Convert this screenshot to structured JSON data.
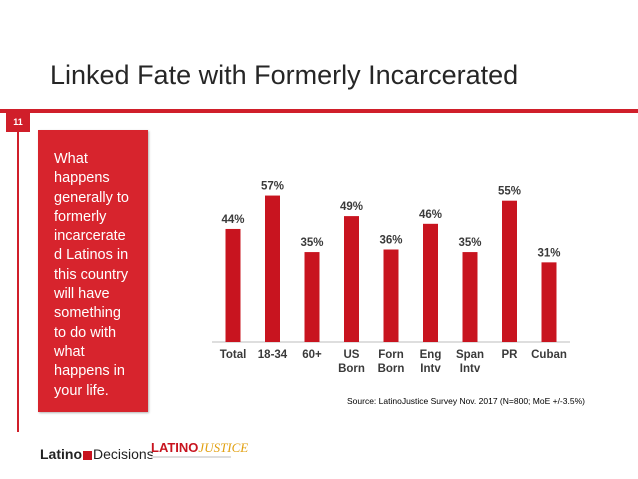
{
  "slide": {
    "title": "Linked Fate with Formerly Incarcerated",
    "number": "11",
    "panel_text": "What\nhappens\ngenerally to\nformerly\nincarcerate\nd Latinos in\nthis country\nwill have\nsomething\nto do with\nwhat\nhappens in\nyour life.",
    "source": "Source: LatinoJustice Survey Nov. 2017 (N=800; MoE +/-3.5%)",
    "logo_left_a": "Latino",
    "logo_left_b": "Decisions",
    "logo_right_a": "LATINO",
    "logo_right_b": "JUSTICE"
  },
  "colors": {
    "accent": "#d01f2a",
    "bar": "#c8141f"
  },
  "chart_data": {
    "type": "bar",
    "categories": [
      "Total",
      "18-34",
      "60+",
      "US\nBorn",
      "Forn\nBorn",
      "Eng\nIntv",
      "Span\nIntv",
      "PR",
      "Cuban"
    ],
    "values": [
      44,
      57,
      35,
      49,
      36,
      46,
      35,
      55,
      31
    ],
    "value_labels": [
      "44%",
      "57%",
      "35%",
      "49%",
      "36%",
      "46%",
      "35%",
      "55%",
      "31%"
    ],
    "title": "",
    "xlabel": "",
    "ylabel": "",
    "ylim": [
      0,
      65
    ],
    "grid": false,
    "legend": "none"
  }
}
